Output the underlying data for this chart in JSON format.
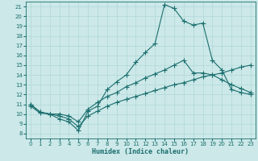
{
  "xlabel": "Humidex (Indice chaleur)",
  "bg_color": "#cce8e8",
  "line_color": "#1a6e6e",
  "grid_color": "#b0d8d8",
  "xlim": [
    -0.5,
    23.5
  ],
  "ylim": [
    7.5,
    21.5
  ],
  "xticks": [
    0,
    1,
    2,
    3,
    4,
    5,
    6,
    7,
    8,
    9,
    10,
    11,
    12,
    13,
    14,
    15,
    16,
    17,
    18,
    19,
    20,
    21,
    22,
    23
  ],
  "yticks": [
    8,
    9,
    10,
    11,
    12,
    13,
    14,
    15,
    16,
    17,
    18,
    19,
    20,
    21
  ],
  "line1_y": [
    10.8,
    10.1,
    10.0,
    9.5,
    9.2,
    8.3,
    10.3,
    10.8,
    12.5,
    13.3,
    14.0,
    15.3,
    16.3,
    17.2,
    21.2,
    20.8,
    19.5,
    19.1,
    19.3,
    15.5,
    14.5,
    12.5,
    12.2,
    12.0
  ],
  "line2_y": [
    11.0,
    10.2,
    10.0,
    10.0,
    9.8,
    9.2,
    10.5,
    11.2,
    11.8,
    12.2,
    12.8,
    13.2,
    13.7,
    14.1,
    14.5,
    15.0,
    15.5,
    14.2,
    14.2,
    14.0,
    13.5,
    13.0,
    12.6,
    12.2
  ],
  "line3_y": [
    11.0,
    10.2,
    10.0,
    9.8,
    9.5,
    8.7,
    9.8,
    10.3,
    10.8,
    11.2,
    11.5,
    11.8,
    12.1,
    12.4,
    12.7,
    13.0,
    13.2,
    13.5,
    13.8,
    14.0,
    14.2,
    14.5,
    14.8,
    15.0
  ],
  "marker_size": 2.5,
  "linewidth": 0.8,
  "xlabel_fontsize": 6.0,
  "tick_fontsize": 5.0
}
